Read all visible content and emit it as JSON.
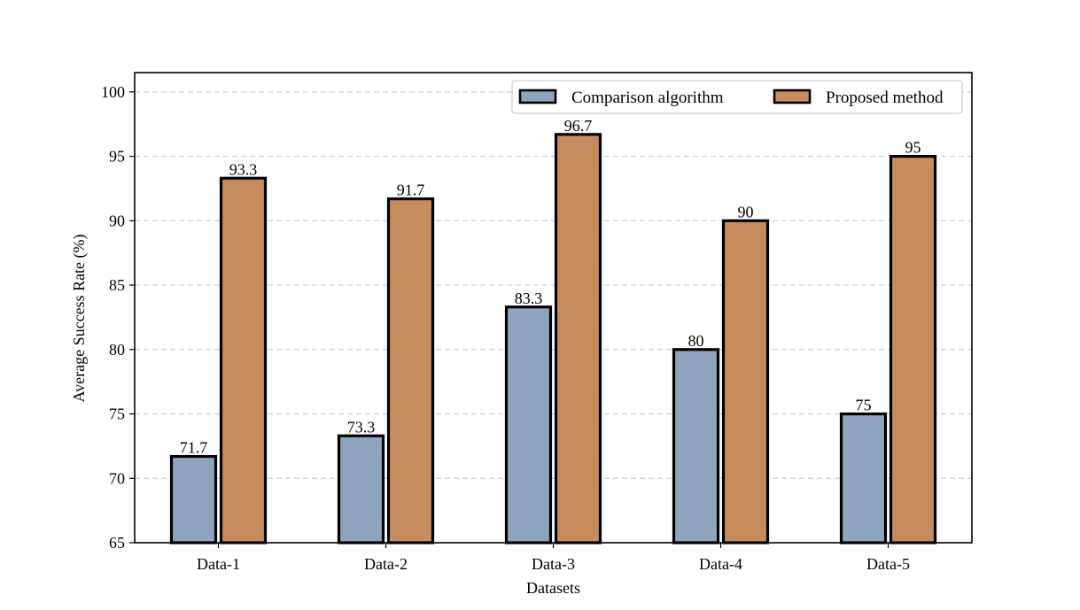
{
  "chart_data": {
    "type": "bar",
    "categories": [
      "Data-1",
      "Data-2",
      "Data-3",
      "Data-4",
      "Data-5"
    ],
    "series": [
      {
        "name": "Comparison algorithm",
        "values": [
          71.7,
          73.3,
          83.3,
          80,
          75
        ],
        "labels": [
          "71.7",
          "73.3",
          "83.3",
          "80",
          "75"
        ],
        "color": "#8fa5bd"
      },
      {
        "name": "Proposed method",
        "values": [
          93.3,
          91.7,
          96.7,
          90,
          95
        ],
        "labels": [
          "93.3",
          "91.7",
          "96.7",
          "90",
          "95"
        ],
        "color": "#c68c5e"
      }
    ],
    "xlabel": "Datasets",
    "ylabel": "Average Success Rate (%)",
    "ylim": [
      65,
      101.5
    ],
    "yticks": [
      65,
      70,
      75,
      80,
      85,
      90,
      95,
      100
    ],
    "grid": "horizontal-dashed",
    "grid_color": "#c9c9e6",
    "legend_position": "top-right"
  }
}
